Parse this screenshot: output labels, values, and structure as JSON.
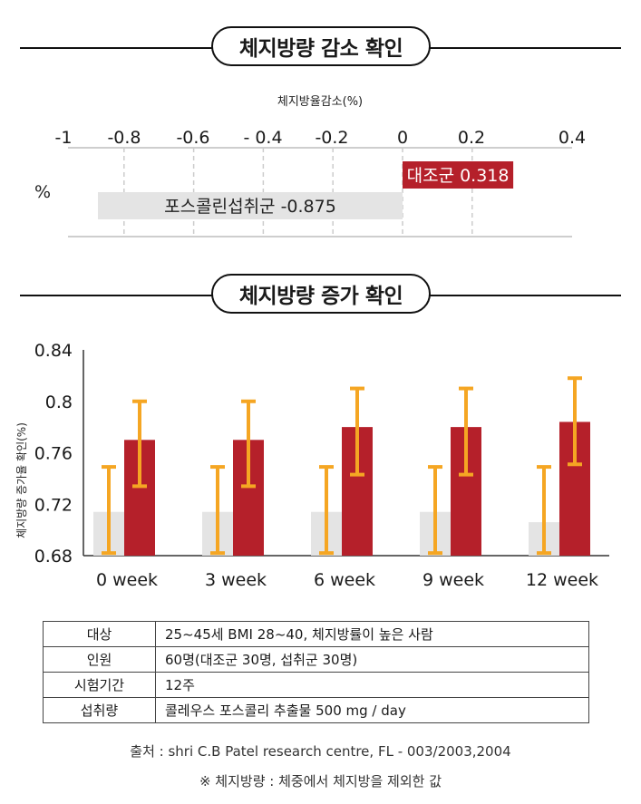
{
  "section1": {
    "title": "체지방량 감소 확인"
  },
  "section2": {
    "title": "체지방량 증가 확인"
  },
  "colors": {
    "red": "#b5202a",
    "gray": "#e4e4e4",
    "orange": "#f5a623",
    "line": "#111111"
  },
  "chart_data": [
    {
      "type": "bar",
      "orientation": "horizontal",
      "title": "체지방율감소(%)",
      "ylabel": "%",
      "x_ticks": [
        "-1",
        "-0.8",
        "-0.6",
        "- 0.4",
        "-0.2",
        "0",
        "0.2",
        "0.4"
      ],
      "xlim": [
        -1,
        0.4
      ],
      "gridlines": [
        -0.8,
        -0.6,
        -0.4,
        -0.2,
        0,
        0.2
      ],
      "series": [
        {
          "name": "대조군",
          "value": 0.318,
          "label": "대조군 0.318",
          "color": "#b5202a"
        },
        {
          "name": "포스콜린섭취군",
          "value": -0.875,
          "label": "포스콜린섭취군 -0.875",
          "color": "#e4e4e4"
        }
      ]
    },
    {
      "type": "bar",
      "ylabel": "체지방량 증가율 확인(%)",
      "ylim": [
        0.68,
        0.84
      ],
      "y_ticks": [
        "0.84",
        "0.8",
        "0.76",
        "0.72",
        "0.68"
      ],
      "categories": [
        "0 week",
        "3 week",
        "6 week",
        "9 week",
        "12 week"
      ],
      "series": [
        {
          "color": "#e4e4e4",
          "values": [
            0.714,
            0.714,
            0.714,
            0.714,
            0.706
          ],
          "error_low": [
            0.682,
            0.682,
            0.682,
            0.682,
            0.682
          ],
          "error_high": [
            0.749,
            0.749,
            0.749,
            0.749,
            0.749
          ]
        },
        {
          "color": "#b5202a",
          "values": [
            0.77,
            0.77,
            0.78,
            0.78,
            0.784
          ],
          "error_low": [
            0.734,
            0.734,
            0.743,
            0.743,
            0.751
          ],
          "error_high": [
            0.8,
            0.8,
            0.81,
            0.81,
            0.818
          ]
        }
      ],
      "grid": false
    }
  ],
  "info_table": [
    {
      "key": "대상",
      "value": "25~45세 BMI 28~40, 체지방률이 높은 사람"
    },
    {
      "key": "인원",
      "value": "60명(대조군 30명, 섭취군 30명)"
    },
    {
      "key": "시험기간",
      "value": "12주"
    },
    {
      "key": "섭취량",
      "value": "콜레우스 포스콜리 추출물 500 mg / day"
    }
  ],
  "source": "출처 : shri C.B Patel research centre, FL - 003/2003,2004",
  "note": "※ 체지방량 : 체중에서 체지방을 제외한 값"
}
